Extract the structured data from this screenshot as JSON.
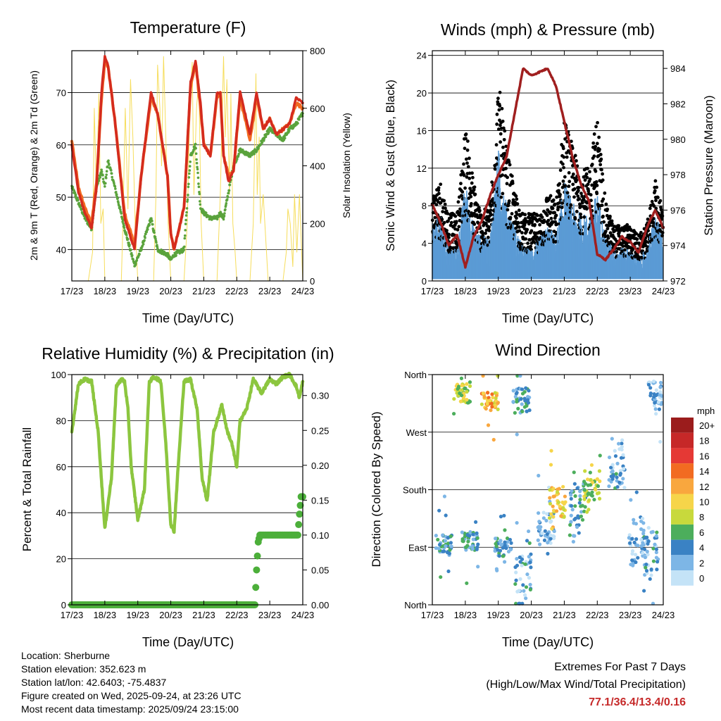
{
  "info": {
    "location": "Location: Sherburne",
    "elevation": "Station elevation: 352.623 m",
    "latlon": "Station lat/lon: 42.6403; -75.4837",
    "created": "Figure created on Wed, 2025-09-24, at 23:26 UTC",
    "recent": "Most recent data timestamp: 2025/09/24 23:15:00"
  },
  "extremes": {
    "heading": "Extremes For Past 7 Days",
    "subheading": "(High/Low/Max Wind/Total Precipitation)",
    "values": "77.1/36.4/13.4/0.16"
  },
  "colors": {
    "red": "#d42b1e",
    "orange": "#f26b21",
    "green": "#5aa33c",
    "yellow": "#f5d94a",
    "black": "#000000",
    "blue": "#5b9bd5",
    "maroon": "#a01f1f",
    "rh": "#8cc63f",
    "precip": "#4caf3a"
  },
  "chart_data": [
    {
      "type": "line",
      "title": "Temperature (F)",
      "xlabel": "Time (Day/UTC)",
      "ylabel": "2m & 9m T (Red, Orange) & 2m Td (Green)",
      "ylabel_right": "Solar Insolation (Yellow)",
      "x_ticks": [
        "17/23",
        "18/23",
        "19/23",
        "20/23",
        "21/23",
        "22/23",
        "23/23",
        "24/23"
      ],
      "ylim": [
        34,
        78
      ],
      "y_ticks": [
        40,
        50,
        60,
        70
      ],
      "ylim_right": [
        0,
        800
      ],
      "y_ticks_right": [
        0,
        200,
        400,
        600,
        800
      ],
      "x_days": [
        0,
        0.2,
        0.4,
        0.6,
        0.75,
        0.9,
        1.0,
        1.1,
        1.3,
        1.6,
        1.9,
        2.1,
        2.4,
        2.6,
        2.9,
        3.0,
        3.1,
        3.4,
        3.6,
        3.75,
        3.9,
        4.0,
        4.2,
        4.4,
        4.5,
        4.6,
        4.75,
        4.9,
        5.1,
        5.4,
        5.6,
        5.8,
        6.0,
        6.2,
        6.4,
        6.6,
        6.8,
        7.0
      ],
      "series": [
        {
          "name": "2m T",
          "color": "red",
          "values": [
            60,
            51,
            47,
            44,
            52,
            70,
            77,
            75,
            65,
            46,
            40,
            54,
            70,
            66,
            54,
            43,
            40,
            48,
            72,
            76,
            68,
            60,
            58,
            70,
            70,
            58,
            53,
            55,
            70,
            62,
            70,
            63,
            65,
            62,
            63,
            64,
            69,
            68
          ]
        },
        {
          "name": "9m T",
          "color": "orange",
          "values": [
            61,
            52,
            48,
            45,
            53,
            69,
            76,
            75,
            65,
            47,
            41,
            54,
            69,
            66,
            54,
            43,
            40,
            48,
            71,
            76,
            67,
            60,
            58,
            69,
            70,
            58,
            54,
            55,
            69,
            61,
            69,
            63,
            65,
            62,
            63,
            64,
            68,
            67
          ]
        },
        {
          "name": "2m Td",
          "color": "green",
          "values": [
            52,
            49,
            46,
            44,
            52,
            55,
            52,
            57,
            52,
            44,
            37,
            40,
            46,
            40,
            39,
            38,
            39,
            40,
            58,
            60,
            48,
            47,
            46,
            46,
            47,
            46,
            51,
            56,
            59,
            58,
            59,
            61,
            63,
            62,
            61,
            63,
            64,
            66
          ]
        },
        {
          "name": "Solar",
          "color": "yellow",
          "x_days": [
            0.5,
            0.63,
            0.68,
            0.75,
            0.82,
            0.88,
            0.95,
            1.0,
            1.1,
            1.5,
            1.55,
            1.62,
            1.7,
            1.78,
            1.85,
            1.92,
            2.0,
            2.1,
            2.48,
            2.55,
            2.6,
            2.67,
            2.72,
            2.78,
            2.85,
            2.92,
            3.0,
            3.4,
            3.5,
            3.58,
            3.65,
            3.7,
            3.78,
            3.85,
            3.92,
            4.0,
            4.4,
            4.5,
            4.6,
            4.65,
            4.7,
            4.78,
            4.82,
            4.88,
            4.95,
            5.0,
            5.4,
            5.5,
            5.58,
            5.62,
            5.68,
            5.72,
            5.8,
            5.9,
            5.95,
            6.4,
            6.5,
            6.55,
            6.62,
            6.7,
            6.75,
            6.82,
            6.9,
            7.0
          ],
          "values": [
            0,
            100,
            600,
            300,
            650,
            200,
            250,
            0,
            0,
            0,
            200,
            600,
            250,
            700,
            500,
            200,
            0,
            0,
            0,
            300,
            750,
            600,
            400,
            780,
            500,
            200,
            0,
            0,
            200,
            620,
            760,
            300,
            600,
            700,
            200,
            0,
            0,
            300,
            780,
            500,
            700,
            300,
            650,
            200,
            100,
            0,
            0,
            200,
            720,
            300,
            500,
            200,
            300,
            100,
            0,
            0,
            100,
            250,
            200,
            50,
            300,
            100,
            300,
            0
          ]
        }
      ]
    },
    {
      "type": "scatter",
      "title": "Winds (mph) & Pressure (mb)",
      "xlabel": "Time (Day/UTC)",
      "ylabel": "Sonic Wind & Gust (Blue, Black)",
      "ylabel_right": "Station Pressure (Maroon)",
      "x_ticks": [
        "17/23",
        "18/23",
        "19/23",
        "20/23",
        "21/23",
        "22/23",
        "23/23",
        "24/23"
      ],
      "ylim": [
        0,
        24.5
      ],
      "y_ticks": [
        0,
        4,
        8,
        12,
        16,
        20,
        24
      ],
      "ylim_right": [
        972,
        985
      ],
      "y_ticks_right": [
        972,
        974,
        976,
        978,
        980,
        982,
        984
      ],
      "x_days": [
        0,
        0.25,
        0.5,
        0.75,
        1.0,
        1.25,
        1.5,
        1.75,
        2.0,
        2.25,
        2.5,
        2.75,
        3.0,
        3.25,
        3.5,
        3.75,
        4.0,
        4.25,
        4.5,
        4.75,
        5.0,
        5.25,
        5.5,
        5.75,
        6.0,
        6.25,
        6.5,
        6.75,
        7.0
      ],
      "series": [
        {
          "name": "Wind",
          "color": "blue",
          "values": [
            5,
            6,
            3,
            3,
            9,
            5,
            4,
            4,
            12,
            7,
            5,
            3,
            3,
            4,
            5,
            4,
            9,
            7,
            6,
            6,
            8,
            4,
            3,
            3,
            3,
            2,
            3,
            6,
            4
          ]
        },
        {
          "name": "Gust",
          "color": "black",
          "values": [
            8,
            9,
            6,
            6,
            14,
            9,
            6,
            7,
            18,
            12,
            8,
            6,
            6,
            6,
            8,
            7,
            15,
            12,
            10,
            10,
            15,
            7,
            5,
            5,
            5,
            4,
            5,
            9,
            7
          ]
        },
        {
          "name": "Pressure",
          "color": "maroon",
          "values": [
            976.3,
            975.3,
            974.0,
            974.6,
            972.8,
            974.5,
            975.4,
            976.8,
            978.0,
            979.0,
            981.5,
            984.0,
            983.6,
            983.8,
            984.0,
            983.0,
            981.0,
            979.0,
            977.5,
            976.5,
            973.5,
            973.2,
            973.8,
            974.5,
            974.2,
            973.6,
            975.0,
            976.0,
            975.0
          ]
        }
      ]
    },
    {
      "type": "line",
      "title": "Relative Humidity (%) & Precipitation (in)",
      "xlabel": "Time (Day/UTC)",
      "ylabel": "Percent & Total Rainfall",
      "x_ticks": [
        "17/23",
        "18/23",
        "19/23",
        "20/23",
        "21/23",
        "22/23",
        "23/23",
        "24/23"
      ],
      "ylim": [
        0,
        100
      ],
      "y_ticks": [
        0,
        20,
        40,
        60,
        80,
        100
      ],
      "ylim_right": [
        0,
        0.33
      ],
      "y_ticks_right": [
        "0.00",
        "0.05",
        "0.10",
        "0.15",
        "0.20",
        "0.25",
        "0.30"
      ],
      "x_days": [
        0,
        0.2,
        0.4,
        0.6,
        0.8,
        1.0,
        1.2,
        1.35,
        1.5,
        1.6,
        1.7,
        1.8,
        2.0,
        2.2,
        2.35,
        2.5,
        2.7,
        2.85,
        3.0,
        3.1,
        3.2,
        3.4,
        3.6,
        3.8,
        3.95,
        4.1,
        4.3,
        4.55,
        4.7,
        4.85,
        5.0,
        5.1,
        5.3,
        5.5,
        5.75,
        6.0,
        6.2,
        6.4,
        6.6,
        6.8,
        6.9,
        7.0
      ],
      "series": [
        {
          "name": "RH",
          "color": "rh",
          "values": [
            75,
            96,
            98,
            97,
            75,
            33,
            55,
            95,
            98,
            97,
            85,
            60,
            37,
            50,
            97,
            99,
            97,
            70,
            35,
            32,
            55,
            97,
            98,
            85,
            55,
            45,
            75,
            87,
            76,
            70,
            60,
            80,
            85,
            98,
            92,
            98,
            96,
            99,
            100,
            95,
            90,
            97
          ]
        },
        {
          "name": "Precip",
          "color": "precip",
          "x_days": [
            0,
            5.55,
            5.6,
            5.65,
            5.7,
            6.85,
            6.9,
            6.95,
            7.0
          ],
          "values": [
            0,
            0,
            0.05,
            0.09,
            0.1,
            0.1,
            0.13,
            0.155,
            0.155
          ]
        }
      ]
    },
    {
      "type": "scatter",
      "title": "Wind Direction",
      "xlabel": "Time (Day/UTC)",
      "ylabel": "Direction (Colored By Speed)",
      "x_ticks": [
        "17/23",
        "18/23",
        "19/23",
        "20/23",
        "21/23",
        "22/23",
        "23/23",
        "24/23"
      ],
      "y_ticks": [
        "North",
        "West",
        "South",
        "East",
        "North"
      ],
      "ylim": [
        0,
        360
      ],
      "legend_title": "mph",
      "legend": [
        "20+",
        "18",
        "16",
        "14",
        "12",
        "10",
        "8",
        "6",
        "4",
        "2",
        "0"
      ],
      "legend_colors": [
        "#9b1c1c",
        "#c62828",
        "#e53935",
        "#f26b21",
        "#f9a73e",
        "#f6d54a",
        "#c8d93c",
        "#4cae5c",
        "#3a82c4",
        "#7db6e6",
        "#c4e3f7"
      ],
      "clusters": [
        {
          "x": 0.35,
          "dir": 95,
          "spread": 15,
          "speed": 4
        },
        {
          "x": 0.9,
          "dir": 330,
          "spread": 15,
          "speed": 8
        },
        {
          "x": 1.15,
          "dir": 100,
          "spread": 15,
          "speed": 4
        },
        {
          "x": 1.75,
          "dir": 320,
          "spread": 12,
          "speed": 11
        },
        {
          "x": 2.15,
          "dir": 90,
          "spread": 15,
          "speed": 4
        },
        {
          "x": 2.7,
          "dir": 320,
          "spread": 20,
          "speed": 4
        },
        {
          "x": 2.75,
          "dir": 50,
          "spread": 30,
          "speed": 3
        },
        {
          "x": 3.45,
          "dir": 120,
          "spread": 25,
          "speed": 2
        },
        {
          "x": 3.8,
          "dir": 160,
          "spread": 25,
          "speed": 10
        },
        {
          "x": 4.4,
          "dir": 150,
          "spread": 40,
          "speed": 4
        },
        {
          "x": 4.85,
          "dir": 180,
          "spread": 20,
          "speed": 8
        },
        {
          "x": 5.6,
          "dir": 220,
          "spread": 40,
          "speed": 3
        },
        {
          "x": 6.2,
          "dir": 100,
          "spread": 40,
          "speed": 2
        },
        {
          "x": 6.6,
          "dir": 80,
          "spread": 40,
          "speed": 3
        },
        {
          "x": 6.8,
          "dir": 320,
          "spread": 30,
          "speed": 2
        }
      ]
    }
  ]
}
